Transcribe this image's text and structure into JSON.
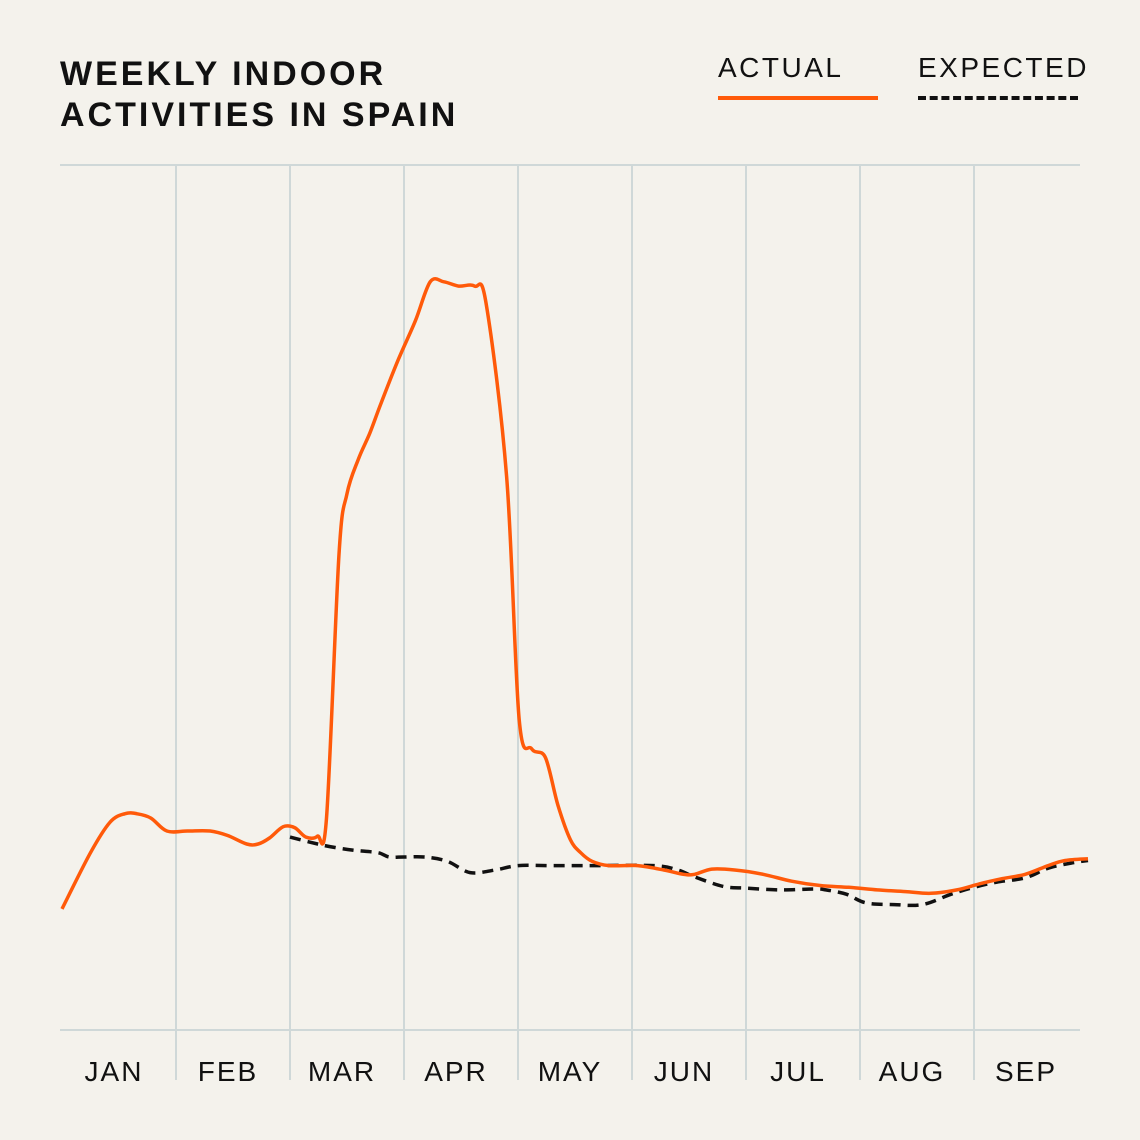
{
  "title_lines": [
    "WEEKLY INDOOR",
    "ACTIVITIES IN SPAIN"
  ],
  "legend": {
    "actual_label": "ACTUAL",
    "expected_label": "EXPECTED"
  },
  "colors": {
    "background": "#f4f2ec",
    "actual": "#ff5a0a",
    "expected": "#111111",
    "grid": "#cfd8d8"
  },
  "chart_data": {
    "type": "line",
    "title": "WEEKLY INDOOR ACTIVITIES IN SPAIN",
    "x_unit": "month (0 = start of JAN)",
    "xlim": [
      0,
      9
    ],
    "ylim": [
      0,
      100
    ],
    "months": [
      "JAN",
      "FEB",
      "MAR",
      "APR",
      "MAY",
      "JUN",
      "JUL",
      "AUG",
      "SEP"
    ],
    "grid": true,
    "legend_position": "top-right",
    "series": [
      {
        "name": "ACTUAL",
        "style": "solid",
        "points": [
          [
            0.0,
            14
          ],
          [
            0.25,
            20.5
          ],
          [
            0.42,
            24
          ],
          [
            0.55,
            25
          ],
          [
            0.66,
            25
          ],
          [
            0.78,
            24.5
          ],
          [
            0.92,
            23
          ],
          [
            1.1,
            23
          ],
          [
            1.3,
            23
          ],
          [
            1.45,
            22.5
          ],
          [
            1.62,
            21.5
          ],
          [
            1.72,
            21.5
          ],
          [
            1.82,
            22.2
          ],
          [
            1.94,
            23.5
          ],
          [
            2.04,
            23.4
          ],
          [
            2.14,
            22.3
          ],
          [
            2.24,
            22.4
          ],
          [
            2.32,
            24.5
          ],
          [
            2.43,
            55
          ],
          [
            2.5,
            62
          ],
          [
            2.6,
            66
          ],
          [
            2.7,
            69
          ],
          [
            2.8,
            72.5
          ],
          [
            2.95,
            77.5
          ],
          [
            3.1,
            82
          ],
          [
            3.23,
            86.5
          ],
          [
            3.35,
            86.5
          ],
          [
            3.48,
            86
          ],
          [
            3.62,
            86
          ],
          [
            3.72,
            84
          ],
          [
            3.9,
            64
          ],
          [
            4.01,
            36
          ],
          [
            4.12,
            32.5
          ],
          [
            4.24,
            31.5
          ],
          [
            4.35,
            26
          ],
          [
            4.46,
            22
          ],
          [
            4.55,
            20.5
          ],
          [
            4.65,
            19.5
          ],
          [
            4.8,
            19
          ],
          [
            5.05,
            19
          ],
          [
            5.28,
            18.5
          ],
          [
            5.45,
            18
          ],
          [
            5.55,
            18
          ],
          [
            5.7,
            18.6
          ],
          [
            5.9,
            18.5
          ],
          [
            6.15,
            18
          ],
          [
            6.4,
            17.2
          ],
          [
            6.65,
            16.7
          ],
          [
            6.9,
            16.5
          ],
          [
            7.15,
            16.2
          ],
          [
            7.4,
            16
          ],
          [
            7.62,
            15.8
          ],
          [
            7.85,
            16.2
          ],
          [
            8.05,
            16.9
          ],
          [
            8.25,
            17.5
          ],
          [
            8.45,
            18
          ],
          [
            8.65,
            19
          ],
          [
            8.8,
            19.6
          ],
          [
            9.0,
            19.8
          ]
        ]
      },
      {
        "name": "EXPECTED",
        "style": "dashed",
        "points": [
          [
            2.0,
            22.3
          ],
          [
            2.18,
            21.7
          ],
          [
            2.35,
            21.2
          ],
          [
            2.55,
            20.8
          ],
          [
            2.77,
            20.5
          ],
          [
            2.87,
            20
          ],
          [
            3.0,
            20
          ],
          [
            3.18,
            20
          ],
          [
            3.38,
            19.5
          ],
          [
            3.58,
            18.2
          ],
          [
            3.8,
            18.5
          ],
          [
            4.0,
            19
          ],
          [
            4.3,
            19
          ],
          [
            4.7,
            19
          ],
          [
            5.2,
            19
          ],
          [
            5.4,
            18.5
          ],
          [
            5.55,
            17.7
          ],
          [
            5.8,
            16.6
          ],
          [
            6.0,
            16.4
          ],
          [
            6.3,
            16.2
          ],
          [
            6.6,
            16.3
          ],
          [
            6.7,
            16.2
          ],
          [
            6.88,
            15.7
          ],
          [
            7.05,
            14.7
          ],
          [
            7.3,
            14.5
          ],
          [
            7.55,
            14.5
          ],
          [
            7.8,
            15.7
          ],
          [
            8.0,
            16.5
          ],
          [
            8.2,
            17.1
          ],
          [
            8.45,
            17.6
          ],
          [
            8.65,
            18.7
          ],
          [
            8.85,
            19.3
          ],
          [
            9.0,
            19.6
          ]
        ]
      }
    ]
  }
}
